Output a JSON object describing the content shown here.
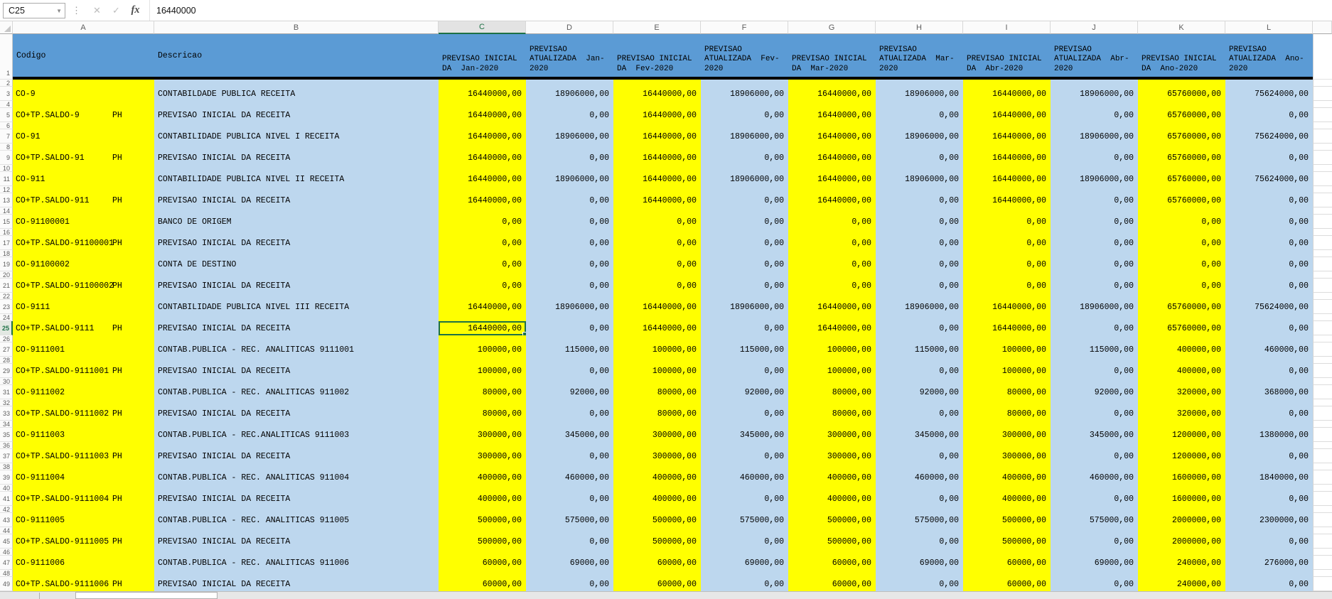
{
  "formula_bar": {
    "name_box": "C25",
    "cancel_icon": "✕",
    "confirm_icon": "✓",
    "fx_label": "fx",
    "formula": "16440000"
  },
  "columns": {
    "letters": [
      "A",
      "B",
      "C",
      "D",
      "E",
      "F",
      "G",
      "H",
      "I",
      "J",
      "K",
      "L"
    ],
    "selected": "C"
  },
  "selection": {
    "cell": "C25",
    "row": 25,
    "value_col_index": 0,
    "accent_color": "#1E7145"
  },
  "colors": {
    "header_blue": "#5B9BD5",
    "cell_blue": "#BDD7EE",
    "cell_yellow": "#FFFF00",
    "grid_black_border": "#000000"
  },
  "header": {
    "row_number": "1",
    "codigo": "Codigo",
    "descricao": "Descricao",
    "periods": [
      "PREVISAO INICIAL\nDA  Jan-2020",
      "PREVISAO\nATUALIZADA  Jan-\n2020",
      "PREVISAO INICIAL\nDA  Fev-2020",
      "PREVISAO\nATUALIZADA  Fev-\n2020",
      "PREVISAO INICIAL\nDA  Mar-2020",
      "PREVISAO\nATUALIZADA  Mar-\n2020",
      "PREVISAO INICIAL\nDA  Abr-2020",
      "PREVISAO\nATUALIZADA  Abr-\n2020",
      "PREVISAO INICIAL\nDA  Ano-2020",
      "PREVISAO\nATUALIZADA  Ano-\n2020"
    ]
  },
  "rows": [
    {
      "row": 3,
      "code": "CO-9",
      "ph": "",
      "desc": "CONTABILDADE PUBLICA RECEITA",
      "values": [
        "16440000,00",
        "18906000,00",
        "16440000,00",
        "18906000,00",
        "16440000,00",
        "18906000,00",
        "16440000,00",
        "18906000,00",
        "65760000,00",
        "75624000,00"
      ]
    },
    {
      "row": 5,
      "code": "CO+TP.SALDO-9",
      "ph": "PH",
      "desc": "PREVISAO INICIAL DA RECEITA",
      "values": [
        "16440000,00",
        "0,00",
        "16440000,00",
        "0,00",
        "16440000,00",
        "0,00",
        "16440000,00",
        "0,00",
        "65760000,00",
        "0,00"
      ]
    },
    {
      "row": 7,
      "code": "CO-91",
      "ph": "",
      "desc": "CONTABILIDADE PUBLICA NIVEL I RECEITA",
      "values": [
        "16440000,00",
        "18906000,00",
        "16440000,00",
        "18906000,00",
        "16440000,00",
        "18906000,00",
        "16440000,00",
        "18906000,00",
        "65760000,00",
        "75624000,00"
      ]
    },
    {
      "row": 9,
      "code": "CO+TP.SALDO-91",
      "ph": "PH",
      "desc": "PREVISAO INICIAL DA RECEITA",
      "values": [
        "16440000,00",
        "0,00",
        "16440000,00",
        "0,00",
        "16440000,00",
        "0,00",
        "16440000,00",
        "0,00",
        "65760000,00",
        "0,00"
      ]
    },
    {
      "row": 11,
      "code": "CO-911",
      "ph": "",
      "desc": "CONTABILIDADE PUBLICA NIVEL II RECEITA",
      "values": [
        "16440000,00",
        "18906000,00",
        "16440000,00",
        "18906000,00",
        "16440000,00",
        "18906000,00",
        "16440000,00",
        "18906000,00",
        "65760000,00",
        "75624000,00"
      ]
    },
    {
      "row": 13,
      "code": "CO+TP.SALDO-911",
      "ph": "PH",
      "desc": "PREVISAO INICIAL DA RECEITA",
      "values": [
        "16440000,00",
        "0,00",
        "16440000,00",
        "0,00",
        "16440000,00",
        "0,00",
        "16440000,00",
        "0,00",
        "65760000,00",
        "0,00"
      ]
    },
    {
      "row": 15,
      "code": "CO-91100001",
      "ph": "",
      "desc": "BANCO DE ORIGEM",
      "values": [
        "0,00",
        "0,00",
        "0,00",
        "0,00",
        "0,00",
        "0,00",
        "0,00",
        "0,00",
        "0,00",
        "0,00"
      ]
    },
    {
      "row": 17,
      "code": "CO+TP.SALDO-91100001",
      "ph": "PH",
      "desc": "PREVISAO INICIAL DA RECEITA",
      "values": [
        "0,00",
        "0,00",
        "0,00",
        "0,00",
        "0,00",
        "0,00",
        "0,00",
        "0,00",
        "0,00",
        "0,00"
      ]
    },
    {
      "row": 19,
      "code": "CO-91100002",
      "ph": "",
      "desc": "CONTA DE DESTINO",
      "values": [
        "0,00",
        "0,00",
        "0,00",
        "0,00",
        "0,00",
        "0,00",
        "0,00",
        "0,00",
        "0,00",
        "0,00"
      ]
    },
    {
      "row": 21,
      "code": "CO+TP.SALDO-91100002",
      "ph": "PH",
      "desc": "PREVISAO INICIAL DA RECEITA",
      "values": [
        "0,00",
        "0,00",
        "0,00",
        "0,00",
        "0,00",
        "0,00",
        "0,00",
        "0,00",
        "0,00",
        "0,00"
      ]
    },
    {
      "row": 23,
      "code": "CO-9111",
      "ph": "",
      "desc": "CONTABILIDADE PUBLICA NIVEL III RECEITA",
      "values": [
        "16440000,00",
        "18906000,00",
        "16440000,00",
        "18906000,00",
        "16440000,00",
        "18906000,00",
        "16440000,00",
        "18906000,00",
        "65760000,00",
        "75624000,00"
      ]
    },
    {
      "row": 25,
      "code": "CO+TP.SALDO-9111",
      "ph": "PH",
      "desc": "PREVISAO INICIAL DA RECEITA",
      "values": [
        "16440000,00",
        "0,00",
        "16440000,00",
        "0,00",
        "16440000,00",
        "0,00",
        "16440000,00",
        "0,00",
        "65760000,00",
        "0,00"
      ]
    },
    {
      "row": 27,
      "code": "CO-9111001",
      "ph": "",
      "desc": "CONTAB.PUBLICA - REC. ANALITICAS 9111001",
      "values": [
        "100000,00",
        "115000,00",
        "100000,00",
        "115000,00",
        "100000,00",
        "115000,00",
        "100000,00",
        "115000,00",
        "400000,00",
        "460000,00"
      ]
    },
    {
      "row": 29,
      "code": "CO+TP.SALDO-9111001",
      "ph": "PH",
      "desc": "PREVISAO INICIAL DA RECEITA",
      "values": [
        "100000,00",
        "0,00",
        "100000,00",
        "0,00",
        "100000,00",
        "0,00",
        "100000,00",
        "0,00",
        "400000,00",
        "0,00"
      ]
    },
    {
      "row": 31,
      "code": "CO-9111002",
      "ph": "",
      "desc": "CONTAB.PUBLICA - REC. ANALITICAS 911002",
      "values": [
        "80000,00",
        "92000,00",
        "80000,00",
        "92000,00",
        "80000,00",
        "92000,00",
        "80000,00",
        "92000,00",
        "320000,00",
        "368000,00"
      ]
    },
    {
      "row": 33,
      "code": "CO+TP.SALDO-9111002",
      "ph": "PH",
      "desc": "PREVISAO INICIAL DA RECEITA",
      "values": [
        "80000,00",
        "0,00",
        "80000,00",
        "0,00",
        "80000,00",
        "0,00",
        "80000,00",
        "0,00",
        "320000,00",
        "0,00"
      ]
    },
    {
      "row": 35,
      "code": "CO-9111003",
      "ph": "",
      "desc": "CONTAB.PUBLICA - REC.ANALITICAS 9111003",
      "values": [
        "300000,00",
        "345000,00",
        "300000,00",
        "345000,00",
        "300000,00",
        "345000,00",
        "300000,00",
        "345000,00",
        "1200000,00",
        "1380000,00"
      ]
    },
    {
      "row": 37,
      "code": "CO+TP.SALDO-9111003",
      "ph": "PH",
      "desc": "PREVISAO INICIAL DA RECEITA",
      "values": [
        "300000,00",
        "0,00",
        "300000,00",
        "0,00",
        "300000,00",
        "0,00",
        "300000,00",
        "0,00",
        "1200000,00",
        "0,00"
      ]
    },
    {
      "row": 39,
      "code": "CO-9111004",
      "ph": "",
      "desc": "CONTAB.PUBLICA - REC. ANALITICAS 911004",
      "values": [
        "400000,00",
        "460000,00",
        "400000,00",
        "460000,00",
        "400000,00",
        "460000,00",
        "400000,00",
        "460000,00",
        "1600000,00",
        "1840000,00"
      ]
    },
    {
      "row": 41,
      "code": "CO+TP.SALDO-9111004",
      "ph": "PH",
      "desc": "PREVISAO INICIAL DA RECEITA",
      "values": [
        "400000,00",
        "0,00",
        "400000,00",
        "0,00",
        "400000,00",
        "0,00",
        "400000,00",
        "0,00",
        "1600000,00",
        "0,00"
      ]
    },
    {
      "row": 43,
      "code": "CO-9111005",
      "ph": "",
      "desc": "CONTAB.PUBLICA - REC. ANALITICAS 911005",
      "values": [
        "500000,00",
        "575000,00",
        "500000,00",
        "575000,00",
        "500000,00",
        "575000,00",
        "500000,00",
        "575000,00",
        "2000000,00",
        "2300000,00"
      ]
    },
    {
      "row": 45,
      "code": "CO+TP.SALDO-9111005",
      "ph": "PH",
      "desc": "PREVISAO INICIAL DA RECEITA",
      "values": [
        "500000,00",
        "0,00",
        "500000,00",
        "0,00",
        "500000,00",
        "0,00",
        "500000,00",
        "0,00",
        "2000000,00",
        "0,00"
      ]
    },
    {
      "row": 47,
      "code": "CO-9111006",
      "ph": "",
      "desc": "CONTAB.PUBLICA - REC. ANALITICAS 911006",
      "values": [
        "60000,00",
        "69000,00",
        "60000,00",
        "69000,00",
        "60000,00",
        "69000,00",
        "60000,00",
        "69000,00",
        "240000,00",
        "276000,00"
      ]
    },
    {
      "row": 49,
      "code": "CO+TP.SALDO-9111006",
      "ph": "PH",
      "desc": "PREVISAO INICIAL DA RECEITA",
      "values": [
        "60000,00",
        "0,00",
        "60000,00",
        "0,00",
        "60000,00",
        "0,00",
        "60000,00",
        "0,00",
        "240000,00",
        "0,00"
      ]
    }
  ]
}
